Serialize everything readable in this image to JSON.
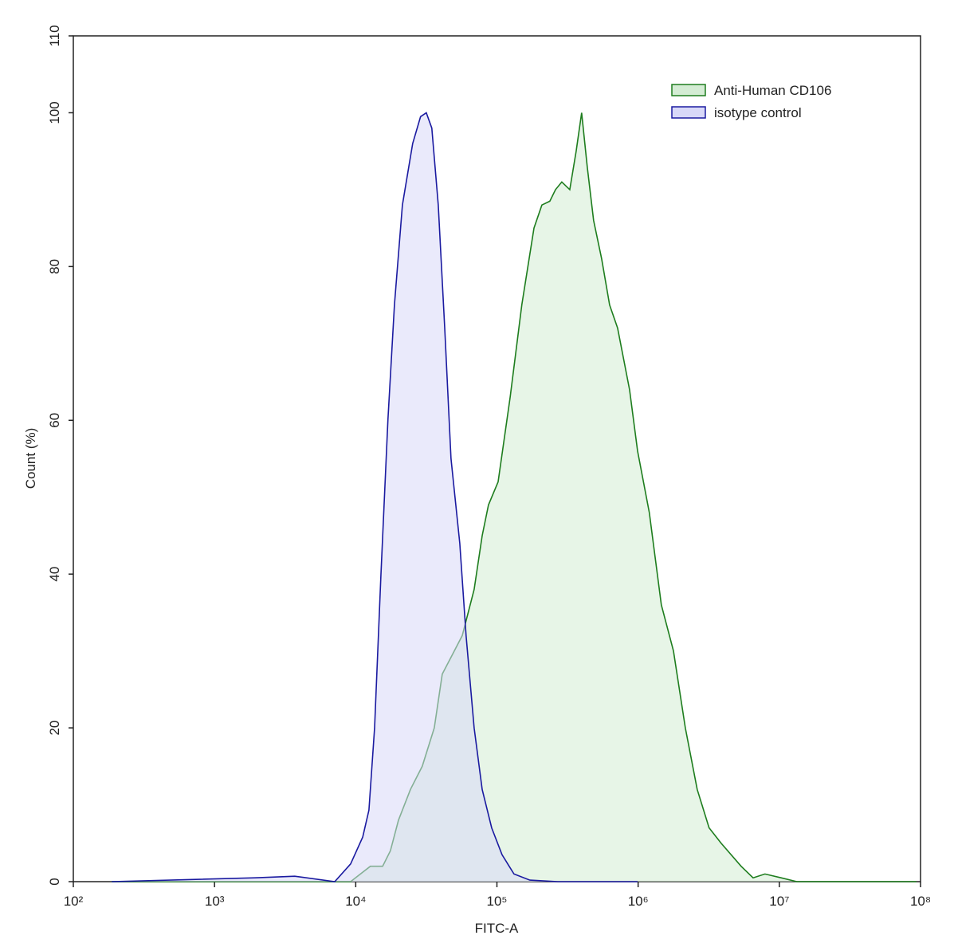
{
  "chart_data": {
    "type": "area",
    "x_label": "FITC-A",
    "y_label": "Count  (%)",
    "log_x": true,
    "legend": "upper right",
    "xlim": [
      100,
      100000000
    ],
    "xticks": [
      {
        "value": 100,
        "label": "10²"
      },
      {
        "value": 1000,
        "label": "10³"
      },
      {
        "value": 10000,
        "label": "10⁴"
      },
      {
        "value": 100000,
        "label": "10⁵"
      },
      {
        "value": 1000000,
        "label": "10⁶"
      },
      {
        "value": 10000000,
        "label": "10⁷"
      },
      {
        "value": 100000000,
        "label": "10⁸"
      }
    ],
    "ylim": [
      0,
      110
    ],
    "yticks": [
      0,
      20,
      40,
      60,
      80,
      100,
      110
    ],
    "series": [
      {
        "name": "Anti-Human CD106",
        "color": "#1e7d1e",
        "fill": "#d4ecd4",
        "x": [
          187,
          9200,
          12700,
          15500,
          17600,
          20100,
          24400,
          29600,
          36000,
          41000,
          49900,
          56800,
          69000,
          78600,
          87100,
          102000,
          124000,
          150000,
          183000,
          208000,
          237000,
          260000,
          288000,
          328000,
          364000,
          398000,
          436000,
          484000,
          552000,
          628000,
          715000,
          869000,
          991000,
          1200000,
          1460000,
          1780000,
          2160000,
          2620000,
          3180000,
          3870000,
          5360000,
          6520000,
          7910000,
          10300000,
          13300000,
          93500000
        ],
        "values": [
          0,
          0,
          2,
          2,
          4,
          8,
          12,
          15,
          20,
          27,
          30,
          32,
          38,
          45,
          49,
          52,
          63,
          75,
          85,
          88,
          88.5,
          90,
          91,
          90,
          95,
          100,
          93,
          86,
          81,
          75,
          72,
          64,
          56,
          48,
          36,
          30,
          20,
          12,
          7,
          5,
          2,
          0.5,
          1,
          0.5,
          0,
          0
        ]
      },
      {
        "name": "isotype control",
        "color": "#1a1aa0",
        "fill": "#d8d8f8",
        "x": [
          187,
          1940,
          3700,
          7100,
          9200,
          11200,
          12400,
          13600,
          15100,
          16900,
          18800,
          21400,
          25300,
          28800,
          31600,
          34600,
          38400,
          42700,
          47300,
          54600,
          60500,
          69000,
          78600,
          91800,
          108700,
          132000,
          171000,
          270000,
          991000
        ],
        "values": [
          0,
          0.5,
          0.7,
          0,
          2.3,
          5.8,
          9.3,
          20,
          40,
          60,
          75,
          88,
          96,
          99.5,
          100,
          98,
          88,
          72,
          55,
          44,
          32,
          20,
          12,
          7,
          3.5,
          1,
          0.2,
          0,
          0
        ]
      }
    ]
  }
}
